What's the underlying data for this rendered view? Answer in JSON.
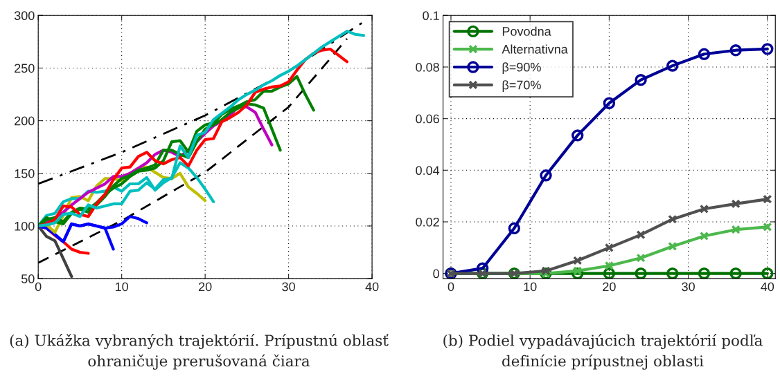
{
  "chart_data": [
    {
      "type": "line",
      "title": "(a) Ukážka vybraných trajektórií. Prípustnú oblasť ohraničuje prerušovaná čiara",
      "xlim": [
        0,
        40
      ],
      "ylim": [
        50,
        300
      ],
      "xticks": [
        0,
        10,
        20,
        30,
        40
      ],
      "yticks": [
        50,
        100,
        150,
        200,
        250,
        300
      ],
      "grid": true,
      "marker": "none",
      "series": [
        {
          "color": "#000000",
          "line_style": "dashed",
          "x": [
            0,
            10,
            20,
            30,
            35,
            37
          ],
          "values": [
            65,
            105,
            151,
            213,
            259,
            278
          ]
        },
        {
          "color": "#000000",
          "line_style": "dashdot",
          "x": [
            0,
            10,
            20,
            30,
            39
          ],
          "values": [
            140,
            170,
            205,
            247,
            294
          ]
        },
        {
          "color": "#404040",
          "x": [
            0,
            1,
            2,
            3,
            4
          ],
          "values": [
            100,
            90,
            86,
            69,
            52
          ]
        },
        {
          "color": "#ff0000",
          "x": [
            0,
            1,
            2,
            3,
            4,
            5,
            6
          ],
          "values": [
            100,
            98,
            91,
            85,
            78,
            75,
            74
          ]
        },
        {
          "color": "#0000ff",
          "x": [
            0,
            1,
            2,
            3,
            4,
            5,
            6,
            7,
            8,
            9
          ],
          "values": [
            100,
            98,
            92,
            85,
            102,
            100,
            102,
            100,
            98,
            78
          ]
        },
        {
          "color": "#0000ff",
          "x": [
            0,
            1,
            2,
            3,
            4,
            5,
            6,
            7,
            8,
            9,
            10,
            11,
            12,
            13
          ],
          "values": [
            100,
            98,
            92,
            85,
            102,
            100,
            102,
            100,
            98,
            99,
            102,
            109,
            107,
            103
          ]
        },
        {
          "color": "#bfbf00",
          "x": [
            0,
            1,
            2,
            3,
            4,
            5,
            6,
            7,
            8,
            9,
            10,
            11,
            12,
            13,
            14,
            15,
            16,
            17,
            18,
            19,
            20
          ],
          "values": [
            100,
            101,
            94,
            110,
            127,
            128,
            124,
            138,
            145,
            145,
            143,
            150,
            155,
            156,
            151,
            146,
            145,
            150,
            137,
            131,
            124
          ]
        },
        {
          "color": "#00bfbf",
          "x": [
            0,
            1,
            2,
            3,
            4,
            5,
            6,
            7,
            8,
            9,
            10,
            11,
            12,
            13,
            14,
            15,
            16,
            17,
            18,
            19,
            20,
            21
          ],
          "values": [
            100,
            110,
            112,
            123,
            126,
            126,
            133,
            132,
            133,
            137,
            133,
            140,
            140,
            146,
            134,
            141,
            146,
            160,
            155,
            146,
            135,
            123
          ]
        },
        {
          "color": "#bf00bf",
          "x": [
            0,
            1,
            2,
            3,
            4,
            5,
            6,
            7,
            8,
            9,
            10,
            11,
            12,
            13,
            14,
            15,
            16,
            17,
            18,
            19,
            20,
            21,
            22,
            23,
            24,
            25,
            26,
            27,
            28
          ],
          "values": [
            100,
            104,
            108,
            113,
            120,
            126,
            132,
            136,
            140,
            147,
            147,
            150,
            155,
            160,
            168,
            172,
            170,
            166,
            172,
            180,
            188,
            195,
            200,
            205,
            214,
            213,
            208,
            192,
            177
          ]
        },
        {
          "color": "#008000",
          "x": [
            0,
            1,
            2,
            3,
            4,
            5,
            6,
            7,
            8,
            9,
            10,
            11,
            12,
            13,
            14,
            15,
            16,
            17,
            18,
            19,
            20,
            21,
            22,
            23,
            24,
            25,
            26,
            27,
            28,
            29
          ],
          "values": [
            100,
            108,
            104,
            102,
            112,
            116,
            113,
            120,
            128,
            138,
            145,
            148,
            153,
            155,
            158,
            172,
            172,
            168,
            165,
            180,
            192,
            196,
            201,
            208,
            212,
            216,
            215,
            212,
            192,
            172
          ]
        },
        {
          "color": "#008000",
          "x": [
            0,
            1,
            2,
            3,
            4,
            5,
            6,
            7,
            8,
            9,
            10,
            11,
            12,
            13,
            14,
            15,
            16,
            17,
            18,
            19,
            20,
            21,
            22,
            23,
            24,
            25,
            26,
            27,
            28,
            29,
            30,
            31,
            32,
            33
          ],
          "values": [
            100,
            106,
            108,
            104,
            113,
            117,
            116,
            122,
            130,
            136,
            140,
            147,
            152,
            153,
            155,
            162,
            180,
            181,
            170,
            190,
            196,
            198,
            206,
            211,
            214,
            218,
            220,
            228,
            228,
            232,
            235,
            242,
            225,
            210
          ]
        },
        {
          "color": "#ff0000",
          "x": [
            0,
            1,
            2,
            3,
            4,
            5,
            6,
            7,
            8,
            9,
            10,
            11,
            12,
            13,
            14,
            15,
            16,
            17,
            18,
            19,
            20,
            21,
            22,
            23,
            24,
            25,
            26,
            27,
            28,
            29,
            30,
            31,
            32,
            33,
            34,
            35,
            36,
            37
          ],
          "values": [
            100,
            102,
            106,
            119,
            118,
            111,
            109,
            121,
            130,
            144,
            155,
            156,
            166,
            170,
            162,
            159,
            163,
            165,
            157,
            172,
            182,
            183,
            199,
            203,
            208,
            215,
            227,
            230,
            232,
            233,
            237,
            248,
            258,
            264,
            267,
            268,
            262,
            256
          ]
        },
        {
          "color": "#00bfbf",
          "x": [
            0,
            1,
            2,
            3,
            4,
            5,
            6,
            7,
            8,
            9,
            10,
            11,
            12,
            13,
            14,
            15,
            16,
            17,
            18,
            19,
            20,
            21,
            22,
            23,
            24,
            25,
            26,
            27,
            28,
            29,
            30,
            31,
            32,
            33,
            34,
            35,
            36,
            37,
            38,
            39
          ],
          "values": [
            100,
            101,
            103,
            111,
            112,
            109,
            120,
            117,
            119,
            121,
            121,
            133,
            134,
            141,
            135,
            144,
            145,
            176,
            165,
            186,
            189,
            201,
            207,
            213,
            220,
            225,
            229,
            234,
            238,
            243,
            247,
            252,
            258,
            264,
            270,
            275,
            280,
            285,
            282,
            281
          ]
        }
      ]
    },
    {
      "type": "line",
      "title": "(b) Podiel vypadávajúcich trajektórií podľa definície prípustnej oblasti",
      "x": [
        0,
        4,
        8,
        12,
        16,
        20,
        24,
        28,
        32,
        36,
        40
      ],
      "xlim": [
        -1,
        41
      ],
      "ylim": [
        -0.002,
        0.1
      ],
      "xticks": [
        0,
        10,
        20,
        30,
        40
      ],
      "yticks": [
        0,
        0.02,
        0.04,
        0.06,
        0.08,
        0.1
      ],
      "grid": true,
      "legend": "top left",
      "series": [
        {
          "name": "Povodna",
          "color": "#007000",
          "marker": "circle",
          "values": [
            0,
            0,
            0,
            0,
            0,
            0,
            0,
            0,
            0,
            0,
            0
          ]
        },
        {
          "name": "Alternativna",
          "color": "#4cb84c",
          "marker": "cross",
          "values": [
            0,
            0,
            0,
            0,
            0.001,
            0.003,
            0.006,
            0.0105,
            0.0145,
            0.017,
            0.018
          ]
        },
        {
          "name": "β=90%",
          "color": "#000096",
          "marker": "circle",
          "values": [
            0,
            0.002,
            0.0175,
            0.038,
            0.0535,
            0.066,
            0.075,
            0.0805,
            0.085,
            0.0865,
            0.087
          ]
        },
        {
          "name": "β=70%",
          "color": "#505050",
          "marker": "cross",
          "values": [
            0,
            0,
            0,
            0.001,
            0.005,
            0.01,
            0.015,
            0.021,
            0.025,
            0.027,
            0.0288
          ]
        }
      ]
    }
  ]
}
